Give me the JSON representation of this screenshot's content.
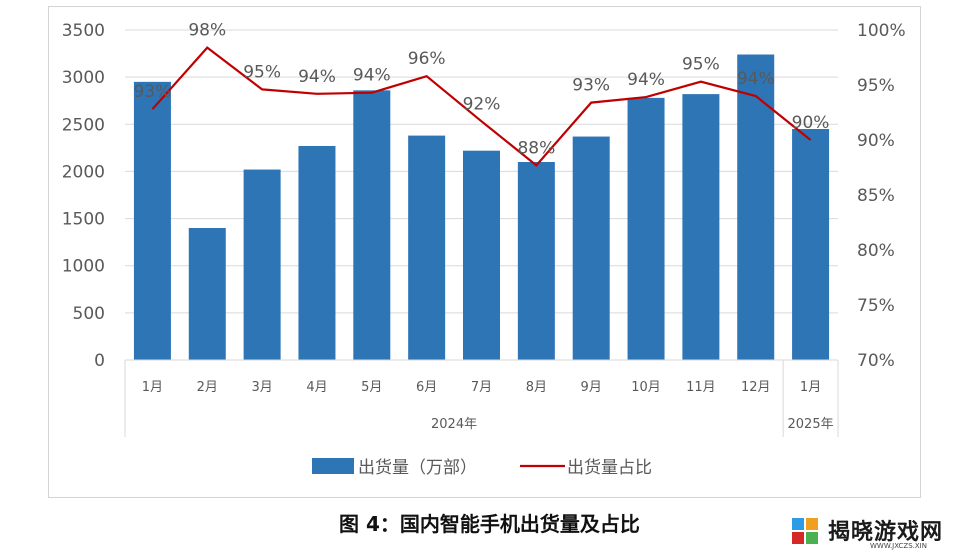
{
  "chart_data": {
    "type": "bar+line",
    "categories": [
      "1月",
      "2月",
      "3月",
      "4月",
      "5月",
      "6月",
      "7月",
      "8月",
      "9月",
      "10月",
      "11月",
      "12月",
      "1月"
    ],
    "groups": [
      {
        "label": "2024年",
        "span": 12
      },
      {
        "label": "2025年",
        "span": 1
      }
    ],
    "series": [
      {
        "name": "出货量（万部）",
        "type": "bar",
        "axis": "left",
        "color": "#2e75b6",
        "values": [
          2950,
          1400,
          2020,
          2270,
          2860,
          2380,
          2220,
          2100,
          2370,
          2780,
          2820,
          3240,
          2450
        ]
      },
      {
        "name": "出货量占比",
        "type": "line",
        "axis": "right",
        "color": "#c00000",
        "values": [
          92.8,
          98.4,
          94.6,
          94.2,
          94.3,
          95.8,
          91.7,
          87.7,
          93.4,
          93.9,
          95.3,
          94.0,
          90.0
        ],
        "labels": [
          "93%",
          "98%",
          "95%",
          "94%",
          "94%",
          "96%",
          "92%",
          "88%",
          "93%",
          "94%",
          "95%",
          "94%",
          "90%"
        ]
      }
    ],
    "y_left": {
      "min": 0,
      "max": 3500,
      "ticks": [
        0,
        500,
        1000,
        1500,
        2000,
        2500,
        3000,
        3500
      ]
    },
    "y_right": {
      "min": 70,
      "max": 100,
      "ticks": [
        "70%",
        "75%",
        "80%",
        "85%",
        "90%",
        "95%",
        "100%"
      ]
    },
    "grid": true,
    "legend": "bottom"
  },
  "caption": "图 4：国内智能手机出货量及占比",
  "logo": {
    "text": "揭晓游戏网",
    "sub": "WWW.JXCZS.XIN"
  }
}
